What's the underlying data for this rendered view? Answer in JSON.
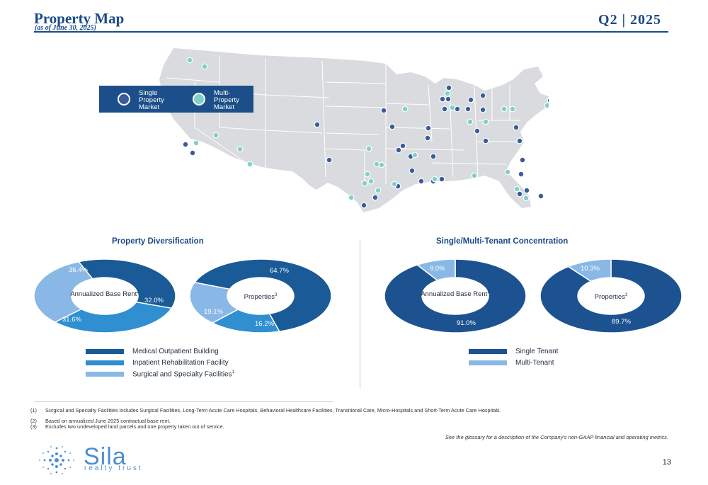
{
  "header": {
    "title": "Property Map",
    "subtitle": "(as of June 30, 2025)",
    "quarter": "Q2 | 2025"
  },
  "map": {
    "legend": {
      "single": "Single Property Market",
      "multi": "Multi-Property Market"
    },
    "colors": {
      "land": "#d9dbde",
      "border": "#ffffff",
      "single": "#3a5c9c",
      "multi": "#7fd1c8"
    }
  },
  "diversification": {
    "title": "Property Diversification",
    "abr": {
      "center": "Annualized Base Rent",
      "sup": "2",
      "values": [
        36.4,
        32.0,
        31.6
      ],
      "labels": [
        "36.4%",
        "32.0%",
        "31.6%"
      ]
    },
    "properties": {
      "center": "Properties",
      "sup": "3",
      "values": [
        64.7,
        16.2,
        19.1
      ],
      "labels": [
        "64.7%",
        "16.2%",
        "19.1%"
      ]
    },
    "legend": [
      {
        "label": "Medical Outpatient Building",
        "color": "#1a5a96"
      },
      {
        "label": "Inpatient Rehabilitation Facility",
        "color": "#2f8fd1"
      },
      {
        "label": "Surgical and Specialty Facilities",
        "sup": "1",
        "color": "#8ab8e6"
      }
    ]
  },
  "concentration": {
    "title": "Single/Multi-Tenant Concentration",
    "abr": {
      "center": "Annualized Base Rent",
      "sup": "2",
      "values": [
        91.0,
        9.0
      ],
      "labels": [
        "91.0%",
        "9.0%"
      ]
    },
    "properties": {
      "center": "Properties",
      "sup": "3",
      "values": [
        89.7,
        10.3
      ],
      "labels": [
        "89.7%",
        "10.3%"
      ]
    },
    "legend": [
      {
        "label": "Single Tenant",
        "color": "#1d5291"
      },
      {
        "label": "Multi-Tenant",
        "color": "#8ab8e6"
      }
    ]
  },
  "footnotes": [
    {
      "num": "(1)",
      "text": "Surgical and Specialty Facilities includes Surgical Facilities, Long-Term Acute Care Hospitals, Behavioral Healthcare Facilities, Transitional Care, Micro-Hospitals and Short-Term Acute Care Hospitals."
    },
    {
      "num": "(2)",
      "text": "Based on annualized June 2025 contractual base rent."
    },
    {
      "num": "(3)",
      "text": "Excludes two undeveloped land parcels and one property taken out of service."
    }
  ],
  "glossary_note": "See the glossary for a description of the Company's non-GAAP financial and operating metrics.",
  "logo": {
    "name": "Sila",
    "tagline": "realty trust"
  },
  "page_number": "13"
}
